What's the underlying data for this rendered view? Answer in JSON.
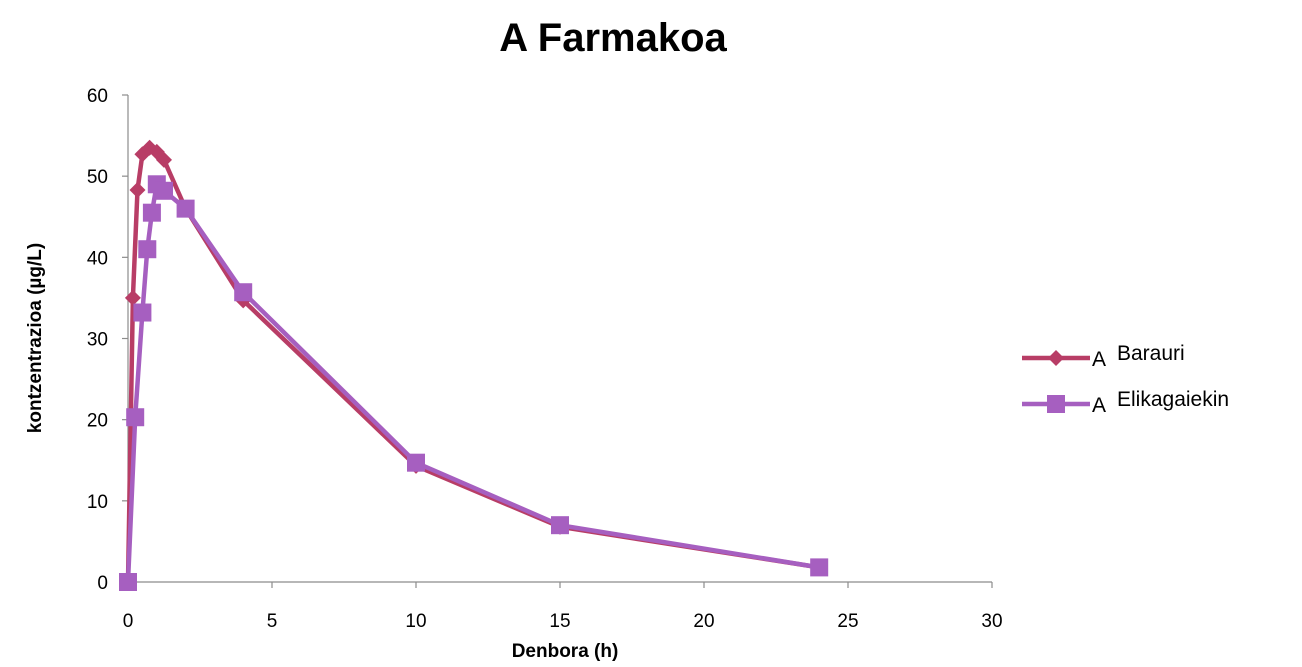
{
  "chart_data": {
    "type": "line",
    "title": "A Farmakoa",
    "xlabel": "Denbora (h)",
    "ylabel": "kontzentrazioa (µg/L)",
    "xlim": [
      0,
      30
    ],
    "ylim": [
      0,
      60
    ],
    "x_ticks": [
      "0",
      "5",
      "10",
      "15",
      "20",
      "25",
      "30"
    ],
    "y_ticks": [
      "0",
      "10",
      "20",
      "30",
      "40",
      "50",
      "60"
    ],
    "grid": false,
    "legend_position": "right",
    "series": [
      {
        "name": "A Barauri",
        "legend_prefix": "A",
        "legend_text": "Barauri",
        "color": "#b83d66",
        "marker": "diamond",
        "x": [
          0,
          0.17,
          0.33,
          0.5,
          0.75,
          1,
          1.25,
          2,
          4,
          10,
          15,
          24
        ],
        "y": [
          0,
          35,
          48.3,
          52.7,
          53.5,
          53,
          52,
          46,
          34.7,
          14.3,
          6.8,
          1.8
        ]
      },
      {
        "name": "A Elikagaiekin",
        "legend_prefix": "A",
        "legend_text": "Elikagaiekin",
        "color": "#a65fc0",
        "marker": "square",
        "x": [
          0,
          0.25,
          0.5,
          0.67,
          0.83,
          1,
          1.25,
          2,
          4,
          10,
          15,
          24
        ],
        "y": [
          0,
          20.3,
          33.2,
          41,
          45.5,
          49,
          48.2,
          46,
          35.7,
          14.7,
          7,
          1.8
        ]
      }
    ]
  }
}
